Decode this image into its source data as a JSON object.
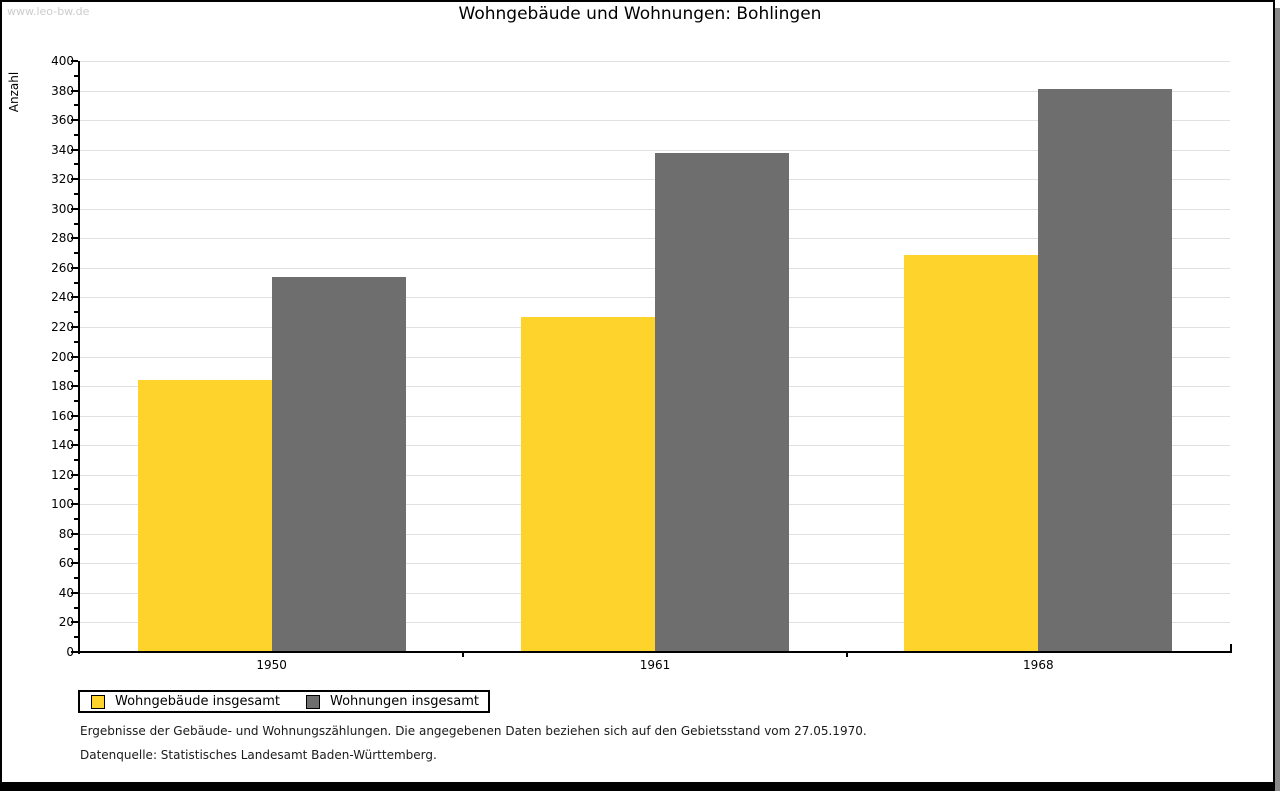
{
  "watermark": "www.leo-bw.de",
  "header": {
    "title": "Wohngebäude und Wohnungen: Bohlingen"
  },
  "chart_data": {
    "type": "bar",
    "title": "Wohngebäude und Wohnungen: Bohlingen",
    "xlabel": "",
    "ylabel": "Anzahl",
    "categories": [
      "1950",
      "1961",
      "1968"
    ],
    "series": [
      {
        "name": "Wohngebäude insgesamt",
        "color": "#FDD32C",
        "values": [
          184,
          227,
          269
        ]
      },
      {
        "name": "Wohnungen insgesamt",
        "color": "#6E6E6E",
        "values": [
          254,
          338,
          381
        ]
      }
    ],
    "ylim": [
      0,
      400
    ],
    "y_major_step": 20,
    "y_minor_step": 10,
    "grid": "horizontal",
    "gridline_color": "#e0e0e0",
    "legend_position": "bottom-left"
  },
  "footnotes": [
    "Ergebnisse der Gebäude- und Wohnungszählungen. Die angegebenen Daten beziehen sich auf den Gebietsstand vom 27.05.1970.",
    "Datenquelle: Statistisches Landesamt Baden-Württemberg."
  ]
}
